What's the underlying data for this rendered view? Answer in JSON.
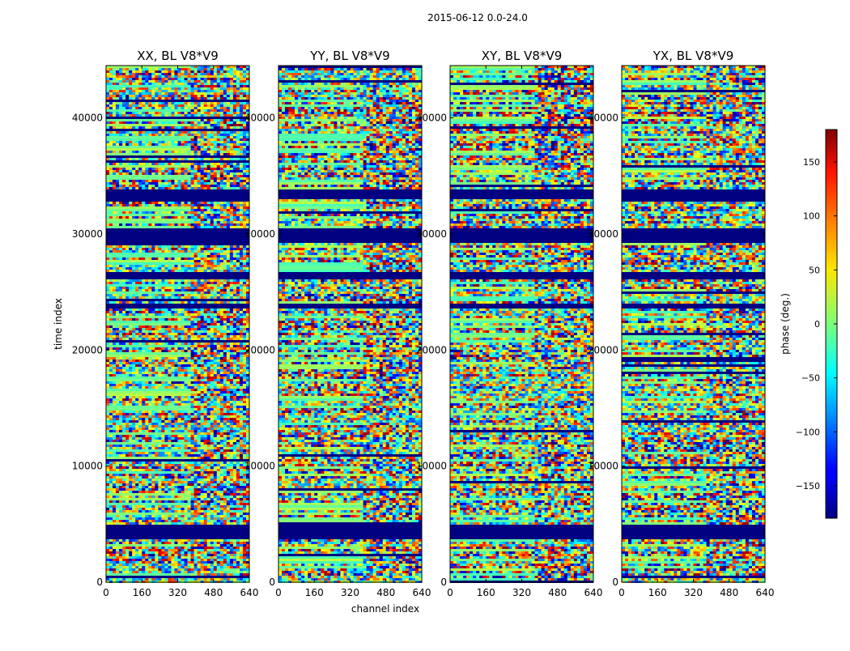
{
  "figure": {
    "suptitle": "2015-06-12 0.0-24.0"
  },
  "chart_data": {
    "type": "heatmap",
    "xlabel": "channel index",
    "ylabel": "time index",
    "xlim": [
      0,
      640
    ],
    "ylim": [
      0,
      44500
    ],
    "xticks": [
      0,
      160,
      320,
      480,
      640
    ],
    "yticks": [
      0,
      10000,
      20000,
      30000,
      40000
    ],
    "colormap": "jet",
    "colorbar": {
      "label": "phase (deg.)",
      "range": [
        -180,
        180
      ],
      "ticks": [
        -150,
        -100,
        -50,
        0,
        50,
        100,
        150
      ]
    },
    "panels": [
      {
        "title": "XX, BL V8*V9"
      },
      {
        "title": "YY, BL V8*V9"
      },
      {
        "title": "XY, BL V8*V9"
      },
      {
        "title": "YX, BL V8*V9"
      }
    ],
    "flagged_time_ranges": [
      [
        3700,
        5100
      ],
      [
        29300,
        30500
      ],
      [
        26200,
        26800
      ],
      [
        33200,
        33900
      ],
      [
        23700,
        24200
      ]
    ],
    "flagged_fill_value": -180
  }
}
